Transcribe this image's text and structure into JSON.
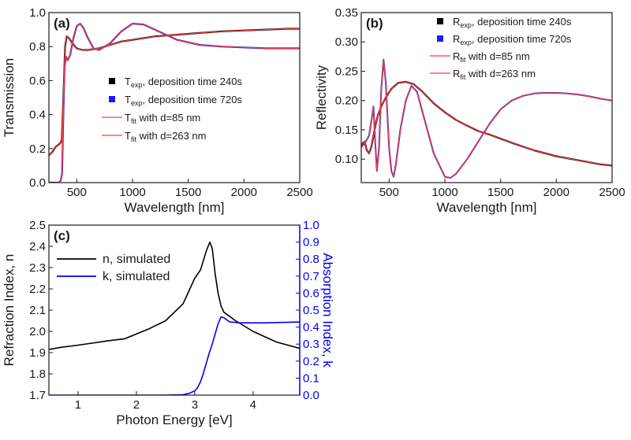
{
  "chart_data": [
    {
      "type": "line",
      "panel_label": "(a)",
      "xlabel": "Wavelength [nm]",
      "ylabel": "Transmission",
      "xlim": [
        250,
        2500
      ],
      "ylim": [
        0.0,
        1.0
      ],
      "xticks": [
        500,
        1000,
        1500,
        2000,
        2500
      ],
      "xtick_labels": [
        "500",
        "1000",
        "1500",
        "2000",
        "2500"
      ],
      "yticks": [
        0.0,
        0.2,
        0.4,
        0.6,
        0.8,
        1.0
      ],
      "ytick_labels": [
        "0.0",
        "0.2",
        "0.4",
        "0.6",
        "0.8",
        "1.0"
      ],
      "grid": false,
      "legend_position": "center-right",
      "legend": [
        {
          "marker": "square",
          "color": "#000000",
          "main": "T",
          "sub": "exp",
          "rest": ", deposition time 240s"
        },
        {
          "marker": "square",
          "color": "#1a1aff",
          "main": "T",
          "sub": "exp",
          "rest": ", deposition time 720s"
        },
        {
          "marker": "line",
          "color": "#ff3b3b",
          "main": "T",
          "sub": "fit",
          "rest": " with d=85 nm"
        },
        {
          "marker": "line",
          "color": "#ff3b3b",
          "main": "T",
          "sub": "fit",
          "rest": " with d=263 nm"
        }
      ],
      "series": [
        {
          "color": "#000000",
          "width": 2.2,
          "x": [
            250,
            280,
            310,
            330,
            350,
            365,
            380,
            395,
            410,
            430,
            460,
            500,
            550,
            600,
            650,
            700,
            800,
            900,
            1000,
            1200,
            1400,
            1600,
            1800,
            2000,
            2200,
            2400,
            2500
          ],
          "y": [
            0.16,
            0.18,
            0.21,
            0.22,
            0.23,
            0.25,
            0.5,
            0.8,
            0.86,
            0.85,
            0.82,
            0.79,
            0.78,
            0.78,
            0.785,
            0.79,
            0.81,
            0.83,
            0.84,
            0.86,
            0.87,
            0.88,
            0.89,
            0.895,
            0.9,
            0.905,
            0.905
          ]
        },
        {
          "color": "#2222cc",
          "width": 2.2,
          "x": [
            250,
            300,
            340,
            355,
            368,
            378,
            390,
            405,
            420,
            440,
            470,
            500,
            530,
            560,
            600,
            650,
            700,
            800,
            900,
            1000,
            1100,
            1200,
            1300,
            1400,
            1600,
            1800,
            2000,
            2200,
            2400,
            2500
          ],
          "y": [
            0.0,
            0.0,
            0.0,
            0.01,
            0.05,
            0.35,
            0.68,
            0.74,
            0.72,
            0.75,
            0.85,
            0.92,
            0.935,
            0.91,
            0.85,
            0.79,
            0.78,
            0.82,
            0.89,
            0.935,
            0.93,
            0.9,
            0.87,
            0.84,
            0.81,
            0.8,
            0.795,
            0.79,
            0.79,
            0.79
          ]
        },
        {
          "color": "#ff3b3b",
          "width": 1.2,
          "x": [
            250,
            280,
            310,
            330,
            350,
            365,
            380,
            395,
            410,
            430,
            460,
            500,
            550,
            600,
            650,
            700,
            800,
            900,
            1000,
            1200,
            1400,
            1600,
            1800,
            2000,
            2200,
            2400,
            2500
          ],
          "y": [
            0.16,
            0.18,
            0.21,
            0.22,
            0.23,
            0.25,
            0.5,
            0.8,
            0.86,
            0.85,
            0.82,
            0.79,
            0.78,
            0.78,
            0.785,
            0.79,
            0.81,
            0.83,
            0.84,
            0.86,
            0.87,
            0.88,
            0.89,
            0.895,
            0.9,
            0.905,
            0.905
          ]
        },
        {
          "color": "#ff3b3b",
          "width": 1.2,
          "x": [
            250,
            300,
            340,
            355,
            368,
            378,
            390,
            405,
            420,
            440,
            470,
            500,
            530,
            560,
            600,
            650,
            700,
            800,
            900,
            1000,
            1100,
            1200,
            1300,
            1400,
            1600,
            1800,
            2000,
            2200,
            2400,
            2500
          ],
          "y": [
            0.0,
            0.0,
            0.0,
            0.01,
            0.05,
            0.35,
            0.68,
            0.74,
            0.72,
            0.75,
            0.85,
            0.92,
            0.935,
            0.91,
            0.85,
            0.79,
            0.78,
            0.82,
            0.89,
            0.935,
            0.93,
            0.9,
            0.87,
            0.84,
            0.81,
            0.8,
            0.795,
            0.79,
            0.79,
            0.79
          ]
        }
      ]
    },
    {
      "type": "line",
      "panel_label": "(b)",
      "xlabel": "Wavelength [nm]",
      "ylabel": "Reflectivity",
      "xlim": [
        250,
        2500
      ],
      "ylim": [
        0.06,
        0.35
      ],
      "xticks": [
        500,
        1000,
        1500,
        2000,
        2500
      ],
      "xtick_labels": [
        "500",
        "1000",
        "1500",
        "2000",
        "2500"
      ],
      "yticks": [
        0.1,
        0.15,
        0.2,
        0.25,
        0.3,
        0.35
      ],
      "ytick_labels": [
        "0.10",
        "0.15",
        "0.20",
        "0.25",
        "0.30",
        "0.35"
      ],
      "grid": false,
      "legend_position": "top-right",
      "legend": [
        {
          "marker": "square",
          "color": "#000000",
          "main": "R",
          "sub": "exp",
          "rest": ", deposition time 240s"
        },
        {
          "marker": "square",
          "color": "#1a1aff",
          "main": "R",
          "sub": "exp",
          "rest": ", deposition time 720s"
        },
        {
          "marker": "line",
          "color": "#ff3b3b",
          "main": "R",
          "sub": "fit",
          "rest": " with d=85 nm"
        },
        {
          "marker": "line",
          "color": "#ff3b3b",
          "main": "R",
          "sub": "fit",
          "rest": " with d=263 nm"
        }
      ],
      "series": [
        {
          "color": "#000000",
          "width": 2.2,
          "x": [
            250,
            280,
            300,
            320,
            340,
            360,
            380,
            400,
            430,
            470,
            520,
            580,
            650,
            720,
            800,
            900,
            1000,
            1100,
            1200,
            1300,
            1400,
            1600,
            1800,
            2000,
            2200,
            2400,
            2500
          ],
          "y": [
            0.125,
            0.13,
            0.115,
            0.11,
            0.12,
            0.14,
            0.16,
            0.175,
            0.19,
            0.205,
            0.22,
            0.23,
            0.232,
            0.228,
            0.215,
            0.195,
            0.18,
            0.167,
            0.157,
            0.148,
            0.142,
            0.128,
            0.115,
            0.105,
            0.098,
            0.091,
            0.089
          ]
        },
        {
          "color": "#2222cc",
          "width": 2.0,
          "x": [
            250,
            290,
            320,
            345,
            360,
            375,
            390,
            410,
            430,
            450,
            470,
            500,
            520,
            540,
            560,
            600,
            650,
            700,
            750,
            800,
            900,
            1000,
            1050,
            1100,
            1200,
            1300,
            1400,
            1500,
            1600,
            1700,
            1800,
            1900,
            2000,
            2100,
            2200,
            2300,
            2400,
            2500
          ],
          "y": [
            0.12,
            0.13,
            0.14,
            0.17,
            0.19,
            0.13,
            0.08,
            0.12,
            0.22,
            0.27,
            0.23,
            0.12,
            0.08,
            0.07,
            0.09,
            0.15,
            0.2,
            0.225,
            0.215,
            0.18,
            0.11,
            0.07,
            0.068,
            0.075,
            0.1,
            0.13,
            0.16,
            0.185,
            0.2,
            0.208,
            0.212,
            0.213,
            0.213,
            0.212,
            0.21,
            0.207,
            0.203,
            0.2
          ]
        },
        {
          "color": "#ff3b3b",
          "width": 1.2,
          "x": [
            250,
            280,
            300,
            320,
            340,
            360,
            380,
            400,
            430,
            470,
            520,
            580,
            650,
            720,
            800,
            900,
            1000,
            1100,
            1200,
            1300,
            1400,
            1600,
            1800,
            2000,
            2200,
            2400,
            2500
          ],
          "y": [
            0.125,
            0.13,
            0.115,
            0.11,
            0.12,
            0.14,
            0.16,
            0.175,
            0.19,
            0.205,
            0.22,
            0.23,
            0.232,
            0.228,
            0.215,
            0.195,
            0.18,
            0.167,
            0.157,
            0.148,
            0.142,
            0.128,
            0.115,
            0.105,
            0.098,
            0.091,
            0.089
          ]
        },
        {
          "color": "#ff3b3b",
          "width": 1.2,
          "x": [
            250,
            290,
            320,
            345,
            360,
            375,
            390,
            410,
            430,
            450,
            470,
            500,
            520,
            540,
            560,
            600,
            650,
            700,
            750,
            800,
            900,
            1000,
            1050,
            1100,
            1200,
            1300,
            1400,
            1500,
            1600,
            1700,
            1800,
            1900,
            2000,
            2100,
            2200,
            2300,
            2400,
            2500
          ],
          "y": [
            0.12,
            0.13,
            0.14,
            0.17,
            0.19,
            0.13,
            0.08,
            0.12,
            0.22,
            0.27,
            0.23,
            0.12,
            0.08,
            0.07,
            0.09,
            0.15,
            0.2,
            0.225,
            0.215,
            0.18,
            0.11,
            0.07,
            0.068,
            0.075,
            0.1,
            0.13,
            0.16,
            0.185,
            0.2,
            0.208,
            0.212,
            0.213,
            0.213,
            0.212,
            0.21,
            0.207,
            0.203,
            0.2
          ]
        }
      ]
    },
    {
      "type": "line",
      "panel_label": "(c)",
      "xlabel": "Photon Energy [eV]",
      "ylabel": "Refraction Index, n",
      "y2label": "Absorption Index, k",
      "xlim": [
        0.5,
        4.8
      ],
      "ylim": [
        1.7,
        2.5
      ],
      "y2lim": [
        0.0,
        1.0
      ],
      "xticks": [
        1,
        2,
        3,
        4
      ],
      "xtick_labels": [
        "1",
        "2",
        "3",
        "4"
      ],
      "yticks": [
        1.7,
        1.8,
        1.9,
        2.0,
        2.1,
        2.2,
        2.3,
        2.4,
        2.5
      ],
      "ytick_labels": [
        "1.7",
        "1.8",
        "1.9",
        "2.0",
        "2.1",
        "2.2",
        "2.3",
        "2.4",
        "2.5"
      ],
      "y2ticks": [
        0.0,
        0.1,
        0.2,
        0.3,
        0.4,
        0.5,
        0.6,
        0.7,
        0.8,
        0.9,
        1.0
      ],
      "y2tick_labels": [
        "0.0",
        "0.1",
        "0.2",
        "0.3",
        "0.4",
        "0.5",
        "0.6",
        "0.7",
        "0.8",
        "0.9",
        "1.0"
      ],
      "y2color": "#0000ee",
      "grid": false,
      "legend_position": "top-left",
      "legend": [
        {
          "marker": "line",
          "color": "#000000",
          "main": "n, simulated"
        },
        {
          "marker": "line",
          "color": "#0000ee",
          "main": "k, simulated"
        }
      ],
      "series": [
        {
          "name": "n, simulated",
          "axis": "left",
          "color": "#000000",
          "width": 1.6,
          "x": [
            0.5,
            0.7,
            1.0,
            1.5,
            1.8,
            2.2,
            2.5,
            2.8,
            3.0,
            3.1,
            3.2,
            3.26,
            3.3,
            3.35,
            3.4,
            3.45,
            3.5,
            3.7,
            4.0,
            4.4,
            4.8
          ],
          "y": [
            1.915,
            1.925,
            1.935,
            1.955,
            1.965,
            2.01,
            2.05,
            2.13,
            2.25,
            2.29,
            2.38,
            2.42,
            2.39,
            2.27,
            2.18,
            2.12,
            2.09,
            2.05,
            2.0,
            1.95,
            1.92
          ]
        },
        {
          "name": "k, simulated",
          "axis": "right",
          "color": "#0000ee",
          "width": 1.6,
          "x": [
            0.5,
            1.0,
            2.0,
            2.5,
            2.8,
            2.9,
            3.0,
            3.05,
            3.1,
            3.15,
            3.2,
            3.25,
            3.3,
            3.35,
            3.4,
            3.45,
            3.5,
            3.6,
            3.8,
            4.2,
            4.8
          ],
          "y": [
            0.0,
            0.0,
            0.0,
            0.0,
            0.003,
            0.01,
            0.025,
            0.045,
            0.08,
            0.13,
            0.19,
            0.25,
            0.3,
            0.36,
            0.42,
            0.46,
            0.455,
            0.43,
            0.425,
            0.425,
            0.43
          ]
        }
      ]
    }
  ]
}
